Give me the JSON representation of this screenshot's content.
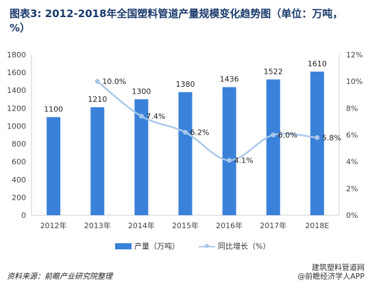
{
  "title": "图表3: 2012-2018年全国塑料管道产量规模变化趋势图（单位：万吨，%）",
  "source": "资料来源：前瞻产业研究院整理",
  "watermark": {
    "line1": "建筑塑料管道网",
    "line2": "@前瞻经济学人APP"
  },
  "colors": {
    "bar": "#3a81d9",
    "line": "#a9c7ea",
    "axis": "#cccccc",
    "grid": "#e4e4e4"
  },
  "chart_data": {
    "type": "bar+line",
    "categories": [
      "2012年",
      "2013年",
      "2014年",
      "2015年",
      "2016年",
      "2017年",
      "2018E"
    ],
    "series": [
      {
        "name": "产量（万吨）",
        "type": "bar",
        "axis": "left",
        "values": [
          1100,
          1210,
          1300,
          1380,
          1436,
          1522,
          1610
        ],
        "labels": [
          "1100",
          "1210",
          "1300",
          "1380",
          "1436",
          "1522",
          "1610"
        ]
      },
      {
        "name": "同比增长（%）",
        "type": "line",
        "axis": "right",
        "values": [
          null,
          10.0,
          7.4,
          6.2,
          4.1,
          6.0,
          5.8
        ],
        "labels": [
          "",
          "10.0%",
          "7.4%",
          "6.2%",
          "4.1%",
          "6.0%",
          "5.8%"
        ]
      }
    ],
    "y_left": {
      "min": 0,
      "max": 1800,
      "step": 200
    },
    "y_right": {
      "min": 0,
      "max": 12,
      "step": 2,
      "suffix": "%"
    },
    "legend_position": "bottom",
    "grid": false
  }
}
